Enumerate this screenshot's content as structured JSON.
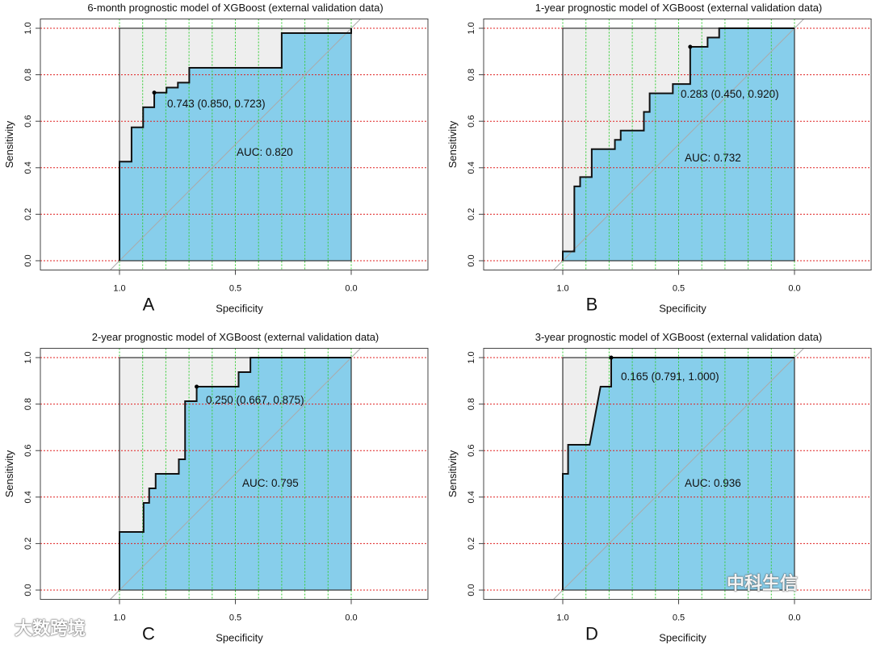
{
  "chart_data": [
    {
      "type": "line",
      "panel_label": "A",
      "title": "6-month prognostic model of XGBoost (external validation data)",
      "xlabel": "Specificity",
      "ylabel": "Sensitivity",
      "xlim": [
        1.0,
        0.0
      ],
      "ylim": [
        0.0,
        1.0
      ],
      "xticks": [
        "1.0",
        "0.5",
        "0.0"
      ],
      "yticks": [
        "0.0",
        "0.2",
        "0.4",
        "0.6",
        "0.8",
        "1.0"
      ],
      "auc_label": "AUC: 0.820",
      "best_threshold_label": "0.743 (0.850, 0.723)",
      "best_point": [
        0.85,
        0.723
      ],
      "points": [
        [
          1,
          0
        ],
        [
          1,
          0.426
        ],
        [
          0.948,
          0.426
        ],
        [
          0.948,
          0.574
        ],
        [
          0.898,
          0.574
        ],
        [
          0.898,
          0.66
        ],
        [
          0.85,
          0.66
        ],
        [
          0.85,
          0.723
        ],
        [
          0.797,
          0.723
        ],
        [
          0.797,
          0.745
        ],
        [
          0.748,
          0.745
        ],
        [
          0.748,
          0.766
        ],
        [
          0.699,
          0.766
        ],
        [
          0.699,
          0.83
        ],
        [
          0.3,
          0.83
        ],
        [
          0.3,
          0.979
        ],
        [
          0,
          0.979
        ],
        [
          0,
          1
        ]
      ]
    },
    {
      "type": "line",
      "panel_label": "B",
      "title": "1-year prognostic model of XGBoost (external validation data)",
      "xlabel": "Specificity",
      "ylabel": "Sensitivity",
      "xlim": [
        1.0,
        0.0
      ],
      "ylim": [
        0.0,
        1.0
      ],
      "xticks": [
        "1.0",
        "0.5",
        "0.0"
      ],
      "yticks": [
        "0.0",
        "0.2",
        "0.4",
        "0.6",
        "0.8",
        "1.0"
      ],
      "auc_label": "AUC: 0.732",
      "best_threshold_label": "0.283 (0.450, 0.920)",
      "best_point": [
        0.45,
        0.92
      ],
      "points": [
        [
          1,
          0
        ],
        [
          1,
          0.04
        ],
        [
          0.95,
          0.04
        ],
        [
          0.95,
          0.32
        ],
        [
          0.925,
          0.32
        ],
        [
          0.925,
          0.36
        ],
        [
          0.875,
          0.36
        ],
        [
          0.875,
          0.48
        ],
        [
          0.775,
          0.48
        ],
        [
          0.775,
          0.52
        ],
        [
          0.75,
          0.52
        ],
        [
          0.75,
          0.56
        ],
        [
          0.65,
          0.56
        ],
        [
          0.65,
          0.64
        ],
        [
          0.625,
          0.64
        ],
        [
          0.625,
          0.72
        ],
        [
          0.525,
          0.72
        ],
        [
          0.525,
          0.76
        ],
        [
          0.45,
          0.76
        ],
        [
          0.45,
          0.92
        ],
        [
          0.375,
          0.92
        ],
        [
          0.375,
          0.96
        ],
        [
          0.325,
          0.96
        ],
        [
          0.325,
          1
        ],
        [
          0,
          1
        ]
      ]
    },
    {
      "type": "line",
      "panel_label": "C",
      "title": "2-year prognostic model of XGBoost (external validation data)",
      "xlabel": "Specificity",
      "ylabel": "Sensitivity",
      "xlim": [
        1.0,
        0.0
      ],
      "ylim": [
        0.0,
        1.0
      ],
      "xticks": [
        "1.0",
        "0.5",
        "0.0"
      ],
      "yticks": [
        "0.0",
        "0.2",
        "0.4",
        "0.6",
        "0.8",
        "1.0"
      ],
      "auc_label": "AUC: 0.795",
      "best_threshold_label": "0.250 (0.667, 0.875)",
      "best_point": [
        0.667,
        0.875
      ],
      "points": [
        [
          1,
          0
        ],
        [
          1,
          0.25
        ],
        [
          0.896,
          0.25
        ],
        [
          0.896,
          0.375
        ],
        [
          0.872,
          0.375
        ],
        [
          0.872,
          0.4375
        ],
        [
          0.844,
          0.4375
        ],
        [
          0.844,
          0.5
        ],
        [
          0.744,
          0.5
        ],
        [
          0.744,
          0.5625
        ],
        [
          0.717,
          0.5625
        ],
        [
          0.717,
          0.8125
        ],
        [
          0.667,
          0.8125
        ],
        [
          0.667,
          0.875
        ],
        [
          0.486,
          0.875
        ],
        [
          0.486,
          0.9375
        ],
        [
          0.435,
          0.9375
        ],
        [
          0.435,
          1
        ],
        [
          0,
          1
        ]
      ]
    },
    {
      "type": "line",
      "panel_label": "D",
      "title": "3-year prognostic model of XGBoost (external validation data)",
      "xlabel": "Specificity",
      "ylabel": "Sensitivity",
      "xlim": [
        1.0,
        0.0
      ],
      "ylim": [
        0.0,
        1.0
      ],
      "xticks": [
        "1.0",
        "0.5",
        "0.0"
      ],
      "yticks": [
        "0.0",
        "0.2",
        "0.4",
        "0.6",
        "0.8",
        "1.0"
      ],
      "auc_label": "AUC: 0.936",
      "best_threshold_label": "0.165 (0.791, 1.000)",
      "best_point": [
        0.791,
        1.0
      ],
      "points": [
        [
          1,
          0
        ],
        [
          1,
          0.5
        ],
        [
          0.977,
          0.5
        ],
        [
          0.977,
          0.625
        ],
        [
          0.884,
          0.625
        ],
        [
          0.837,
          0.875
        ],
        [
          0.791,
          0.875
        ],
        [
          0.791,
          1
        ],
        [
          0,
          1
        ]
      ]
    }
  ],
  "colors": {
    "auc_fill": "#87ceeb",
    "upper_fill": "#eeeeee",
    "grid_h": "#e02020",
    "grid_v": "#33cc33",
    "diagonal": "#aaaaaa"
  },
  "watermarks": {
    "left": "大数跨境",
    "right": "中科生信"
  }
}
